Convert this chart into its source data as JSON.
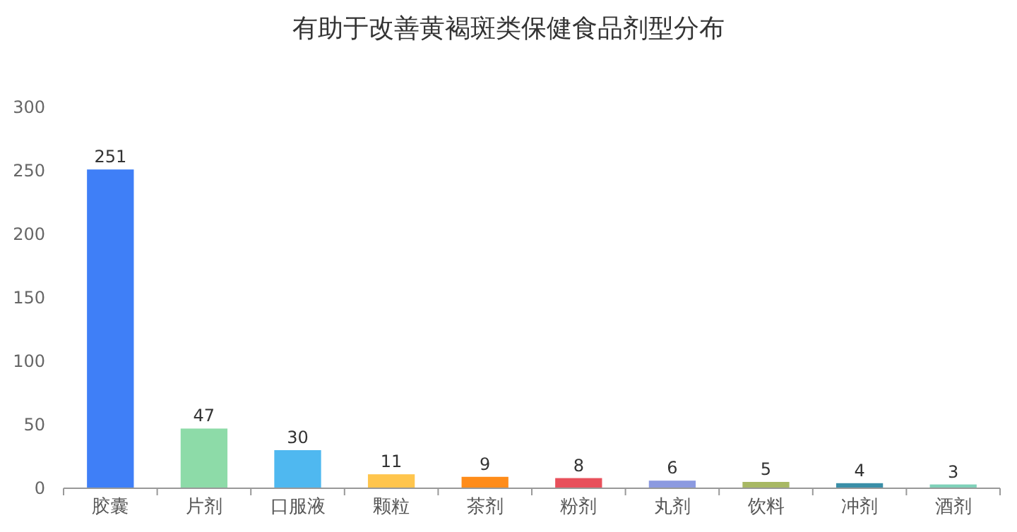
{
  "chart_data": {
    "type": "bar",
    "title": "有助于改善黄褐斑类保健食品剂型分布",
    "categories": [
      "胶囊",
      "片剂",
      "口服液",
      "颗粒",
      "茶剂",
      "粉剂",
      "丸剂",
      "饮料",
      "冲剂",
      "酒剂"
    ],
    "values": [
      251,
      47,
      30,
      11,
      9,
      8,
      6,
      5,
      4,
      3
    ],
    "colors": [
      "#3f7ff7",
      "#8ddba8",
      "#4fb8f0",
      "#ffc54d",
      "#ff8c1a",
      "#e8505b",
      "#8c9ae0",
      "#a8b864",
      "#3a8fa8",
      "#7fd1b9"
    ],
    "ylim": [
      0,
      300
    ],
    "yticks": [
      0,
      50,
      100,
      150,
      200,
      250,
      300
    ],
    "grid": false,
    "data_labels": true
  }
}
